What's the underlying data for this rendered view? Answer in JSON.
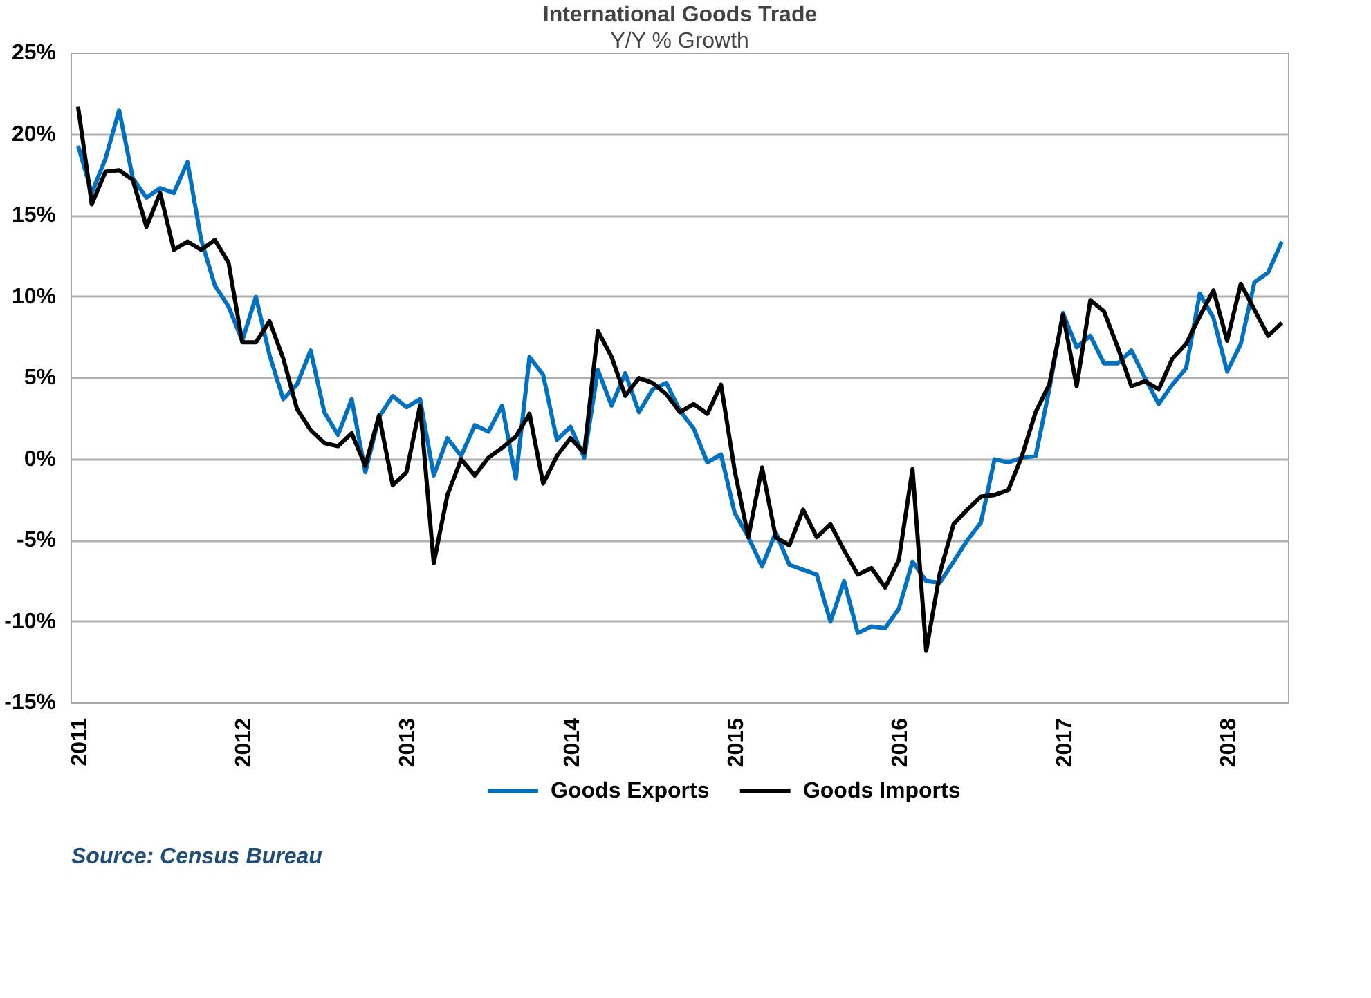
{
  "chart_data": {
    "type": "line",
    "title": "International Goods Trade",
    "subtitle": "Y/Y % Growth",
    "categories": [
      "2011",
      null,
      null,
      null,
      null,
      null,
      null,
      null,
      null,
      null,
      null,
      null,
      "2012",
      null,
      null,
      null,
      null,
      null,
      null,
      null,
      null,
      null,
      null,
      null,
      "2013",
      null,
      null,
      null,
      null,
      null,
      null,
      null,
      null,
      null,
      null,
      null,
      "2014",
      null,
      null,
      null,
      null,
      null,
      null,
      null,
      null,
      null,
      null,
      null,
      "2015",
      null,
      null,
      null,
      null,
      null,
      null,
      null,
      null,
      null,
      null,
      null,
      "2016",
      null,
      null,
      null,
      null,
      null,
      null,
      null,
      null,
      null,
      null,
      null,
      "2017",
      null,
      null,
      null,
      null,
      null,
      null,
      null,
      null,
      null,
      null,
      null,
      "2018",
      null,
      null,
      null,
      null
    ],
    "series": [
      {
        "name": "Goods Exports",
        "color": "#0070c0",
        "values": [
          19.3,
          16.4,
          18.5,
          21.5,
          17.3,
          16.1,
          16.7,
          16.4,
          18.3,
          13.5,
          10.7,
          9.4,
          7.3,
          10.0,
          6.4,
          3.7,
          4.6,
          6.7,
          2.9,
          1.5,
          3.7,
          -0.8,
          2.6,
          3.9,
          3.2,
          3.7,
          -1.0,
          1.3,
          0.2,
          2.1,
          1.7,
          3.3,
          -1.2,
          6.3,
          5.2,
          1.2,
          2.0,
          0.1,
          5.5,
          3.3,
          5.3,
          2.9,
          4.3,
          4.7,
          3.0,
          1.9,
          -0.2,
          0.3,
          -3.3,
          -4.8,
          -6.6,
          -4.5,
          -6.5,
          -6.8,
          -7.1,
          -10.0,
          -7.5,
          -10.7,
          -10.3,
          -10.4,
          -9.2,
          -6.3,
          -7.5,
          -7.6,
          -6.3,
          -5.0,
          -3.9,
          0.0,
          -0.2,
          0.1,
          0.2,
          4.3,
          9.0,
          6.9,
          7.6,
          5.9,
          5.9,
          6.7,
          5.0,
          3.4,
          4.6,
          5.6,
          10.2,
          8.7,
          5.4,
          7.1,
          10.9,
          11.5,
          13.4
        ]
      },
      {
        "name": "Goods Imports",
        "color": "#000000",
        "values": [
          21.7,
          15.7,
          17.7,
          17.8,
          17.2,
          14.3,
          16.4,
          12.9,
          13.4,
          12.9,
          13.5,
          12.1,
          7.2,
          7.2,
          8.5,
          6.2,
          3.1,
          1.8,
          1.0,
          0.8,
          1.6,
          -0.4,
          2.7,
          -1.6,
          -0.8,
          3.3,
          -6.4,
          -2.2,
          0.0,
          -1.0,
          0.1,
          0.7,
          1.4,
          2.8,
          -1.5,
          0.2,
          1.3,
          0.4,
          7.9,
          6.3,
          3.9,
          5.0,
          4.7,
          4.0,
          2.9,
          3.4,
          2.8,
          4.6,
          -0.7,
          -4.8,
          -0.5,
          -4.8,
          -5.3,
          -3.1,
          -4.8,
          -4.0,
          -5.6,
          -7.1,
          -6.7,
          -7.9,
          -6.2,
          -0.6,
          -11.8,
          -7.0,
          -4.0,
          -3.1,
          -2.3,
          -2.2,
          -1.9,
          0.2,
          2.9,
          4.6,
          8.9,
          4.5,
          9.8,
          9.1,
          6.9,
          4.5,
          4.8,
          4.3,
          6.2,
          7.1,
          8.8,
          10.4,
          7.3,
          10.8,
          9.2,
          7.6,
          8.4
        ]
      }
    ],
    "ylim": [
      -15,
      25
    ],
    "yticks": [
      {
        "value": -15,
        "label": "-15%"
      },
      {
        "value": -10,
        "label": "-10%"
      },
      {
        "value": -5,
        "label": "-5%"
      },
      {
        "value": 0,
        "label": "0%"
      },
      {
        "value": 5,
        "label": "5%"
      },
      {
        "value": 10,
        "label": "10%"
      },
      {
        "value": 15,
        "label": "15%"
      },
      {
        "value": 20,
        "label": "20%"
      },
      {
        "value": 25,
        "label": "25%"
      }
    ],
    "grid": "y",
    "legend": "bottom",
    "marker": "none",
    "line_style": "solid",
    "annotations": [
      "Source: Census Bureau"
    ]
  }
}
